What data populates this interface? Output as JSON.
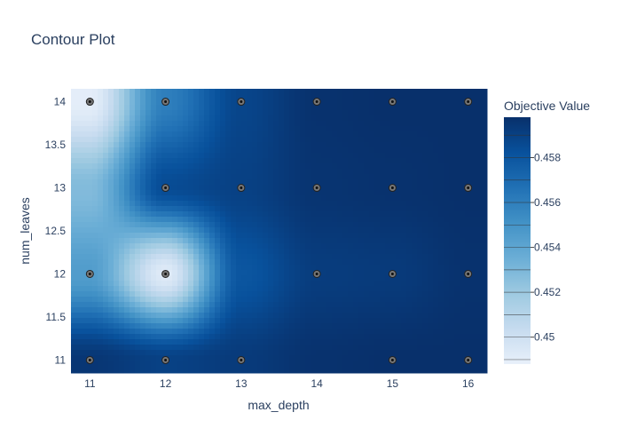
{
  "chart_data": {
    "type": "contour",
    "title": "Contour Plot",
    "xlabel": "max_depth",
    "ylabel": "num_leaves",
    "x_ticks": [
      "11",
      "12",
      "13",
      "14",
      "15",
      "16"
    ],
    "y_ticks": [
      "11",
      "11.5",
      "12",
      "12.5",
      "13",
      "13.5",
      "14"
    ],
    "xlim": [
      10.75,
      16.25
    ],
    "ylim": [
      10.85,
      14.15
    ],
    "colorbar": {
      "title": "Objective Value",
      "ticks": [
        "0.45",
        "0.452",
        "0.454",
        "0.456",
        "0.458"
      ],
      "tick_values": [
        0.45,
        0.452,
        0.454,
        0.456,
        0.458
      ],
      "range": [
        0.4488,
        0.4598
      ],
      "colorscale": [
        "#e8f0fa",
        "#c6dbef",
        "#9ecae1",
        "#6baed6",
        "#4292c6",
        "#2171b5",
        "#08519c",
        "#08306b"
      ]
    },
    "x": [
      11,
      12,
      13,
      14,
      15,
      16
    ],
    "y": [
      11,
      12,
      13,
      14
    ],
    "z": [
      [
        0.4595,
        0.459,
        0.4593,
        0.4597,
        0.4598,
        0.4598
      ],
      [
        0.4545,
        0.4492,
        0.458,
        0.4592,
        0.4593,
        0.4597
      ],
      [
        0.4528,
        0.4585,
        0.459,
        0.4596,
        0.4597,
        0.4598
      ],
      [
        0.449,
        0.456,
        0.4588,
        0.4597,
        0.4598,
        0.4598
      ]
    ],
    "points": [
      {
        "x": 11,
        "y": 14
      },
      {
        "x": 12,
        "y": 14
      },
      {
        "x": 13,
        "y": 14
      },
      {
        "x": 14,
        "y": 14
      },
      {
        "x": 15,
        "y": 14
      },
      {
        "x": 16,
        "y": 14
      },
      {
        "x": 12,
        "y": 13
      },
      {
        "x": 13,
        "y": 13
      },
      {
        "x": 14,
        "y": 13
      },
      {
        "x": 15,
        "y": 13
      },
      {
        "x": 16,
        "y": 13
      },
      {
        "x": 11,
        "y": 12
      },
      {
        "x": 12,
        "y": 12
      },
      {
        "x": 14,
        "y": 12
      },
      {
        "x": 15,
        "y": 12
      },
      {
        "x": 16,
        "y": 12
      },
      {
        "x": 11,
        "y": 11
      },
      {
        "x": 12,
        "y": 11
      },
      {
        "x": 13,
        "y": 11
      },
      {
        "x": 15,
        "y": 11
      },
      {
        "x": 16,
        "y": 11
      }
    ]
  }
}
